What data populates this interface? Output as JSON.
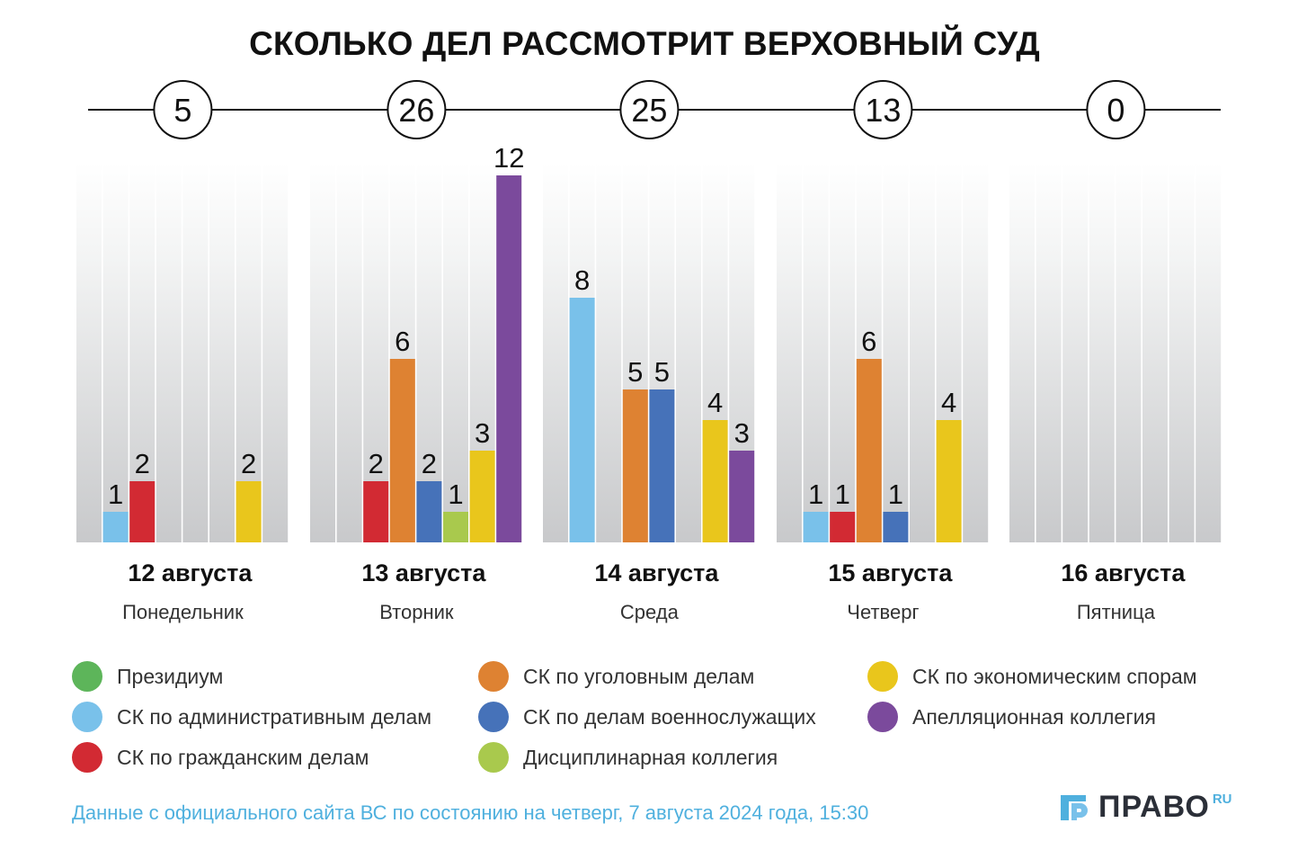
{
  "title": "СКОЛЬКО ДЕЛ РАССМОТРИТ ВЕРХОВНЫЙ СУД",
  "chart_data": {
    "type": "bar",
    "title": "СКОЛЬКО ДЕЛ РАССМОТРИТ ВЕРХОВНЫЙ СУД",
    "xlabel": "",
    "ylabel": "",
    "ylim": [
      0,
      12
    ],
    "grid": false,
    "legend_position": "bottom",
    "categories": [
      {
        "date": "12 августа",
        "weekday": "Понедельник",
        "total": "5"
      },
      {
        "date": "13 августа",
        "weekday": "Вторник",
        "total": "26"
      },
      {
        "date": "14 августа",
        "weekday": "Среда",
        "total": "25"
      },
      {
        "date": "15 августа",
        "weekday": "Четверг",
        "total": "13"
      },
      {
        "date": "16 августа",
        "weekday": "Пятница",
        "total": "0"
      }
    ],
    "series": [
      {
        "name": "Президиум",
        "color": "#5db55a",
        "values": [
          0,
          0,
          0,
          0,
          0
        ]
      },
      {
        "name": "СК по административным делам",
        "color": "#79c1ea",
        "values": [
          1,
          0,
          8,
          1,
          0
        ]
      },
      {
        "name": "СК по гражданским делам",
        "color": "#d22a33",
        "values": [
          2,
          2,
          0,
          1,
          0
        ]
      },
      {
        "name": "СК по уголовным делам",
        "color": "#de8232",
        "values": [
          0,
          6,
          5,
          6,
          0
        ]
      },
      {
        "name": "СК по делам военнослужащих",
        "color": "#4672b9",
        "values": [
          0,
          2,
          5,
          1,
          0
        ]
      },
      {
        "name": "Дисциплинарная коллегия",
        "color": "#a9c94d",
        "values": [
          0,
          1,
          0,
          0,
          0
        ]
      },
      {
        "name": "СК по экономическим спорам",
        "color": "#e9c61c",
        "values": [
          2,
          3,
          4,
          4,
          0
        ]
      },
      {
        "name": "Апелляционная коллегия",
        "color": "#7b4a9c",
        "values": [
          0,
          12,
          3,
          0,
          0
        ]
      }
    ]
  },
  "legend": [
    {
      "label": "Президиум",
      "color": "#5db55a"
    },
    {
      "label": "СК по административным делам",
      "color": "#79c1ea"
    },
    {
      "label": "СК по гражданским делам",
      "color": "#d22a33"
    },
    {
      "label": "СК по уголовным делам",
      "color": "#de8232"
    },
    {
      "label": "СК по делам военнослужащих",
      "color": "#4672b9"
    },
    {
      "label": "Дисциплинарная коллегия",
      "color": "#a9c94d"
    },
    {
      "label": "СК по экономическим спорам",
      "color": "#e9c61c"
    },
    {
      "label": "Апелляционная коллегия",
      "color": "#7b4a9c"
    }
  ],
  "footer": "Данные с официального сайта ВС по состоянию на четверг, 7 августа 2024 года, 15:30",
  "logo": {
    "text": "ПРАВО",
    "suffix": "RU"
  }
}
